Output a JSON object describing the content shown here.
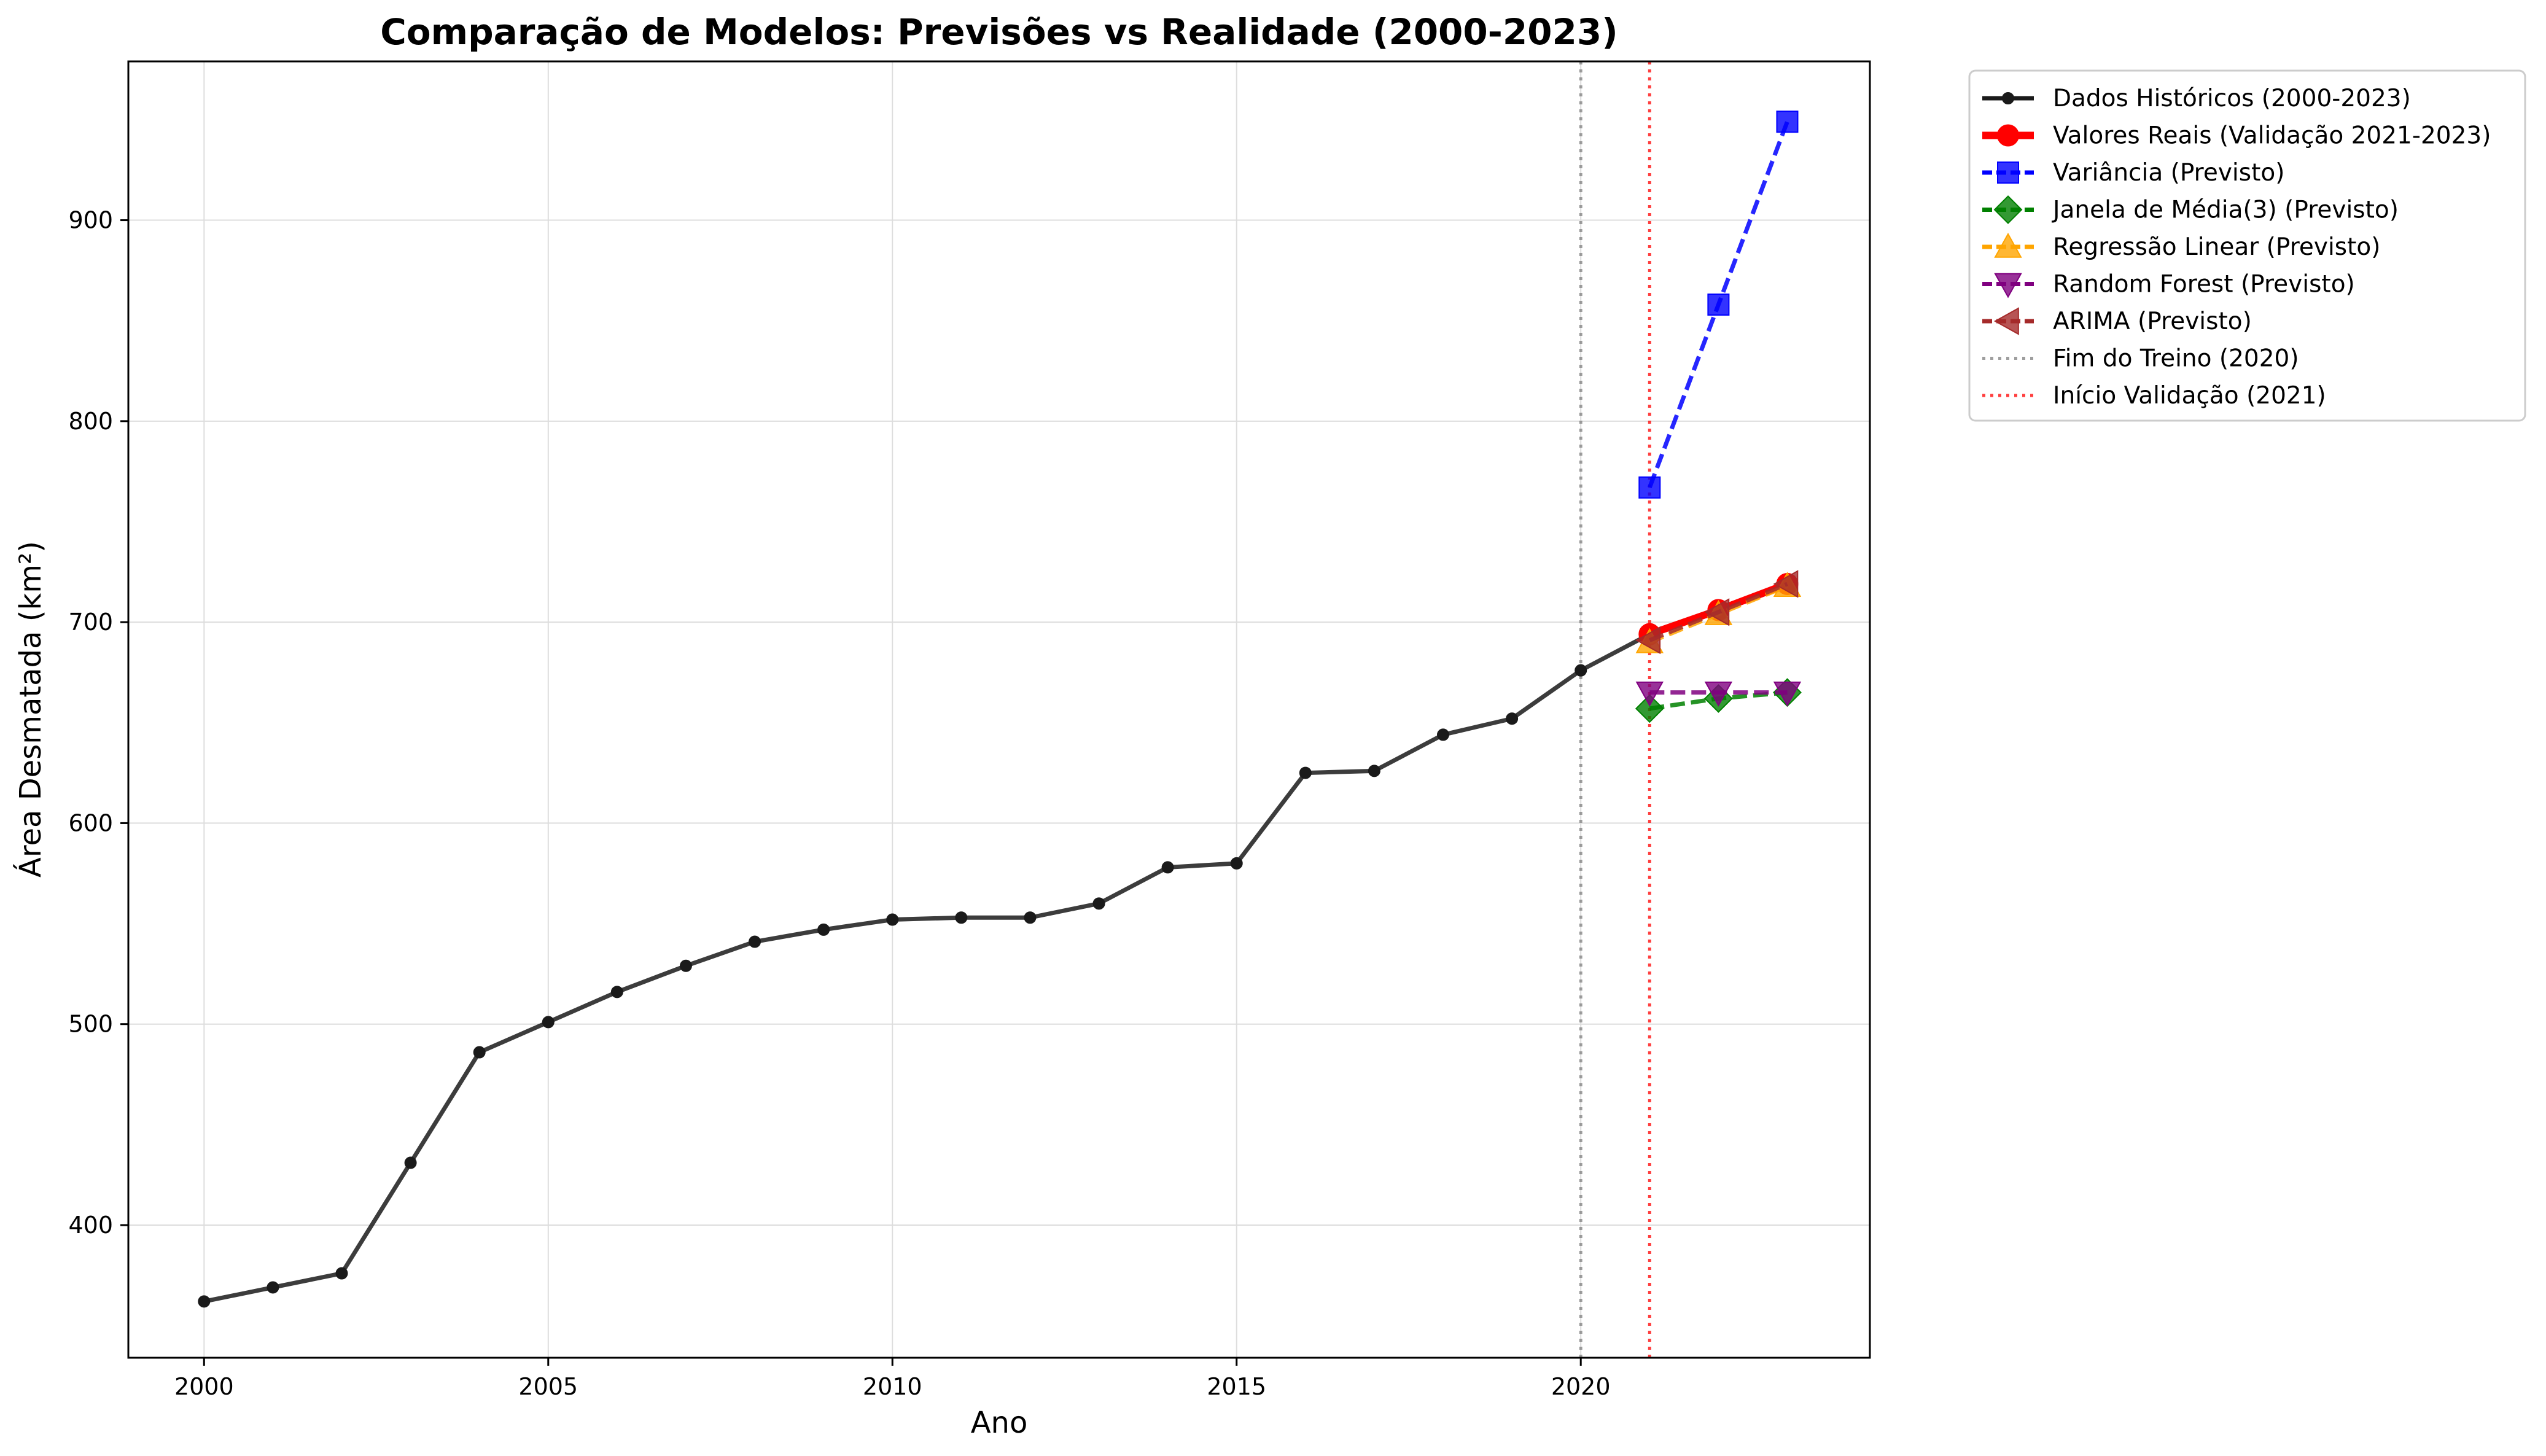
{
  "chart_data": {
    "type": "line",
    "title": "Comparação de Modelos: Previsões vs Realidade (2000-2023)",
    "xlabel": "Ano",
    "ylabel": "Área Desmatada (km²)",
    "xlim": [
      1998.9,
      2024.2
    ],
    "ylim": [
      334,
      979
    ],
    "xticks": [
      2000,
      2005,
      2010,
      2015,
      2020
    ],
    "yticks": [
      400,
      500,
      600,
      700,
      800,
      900
    ],
    "grid": true,
    "legend_position": "outside-right",
    "series": [
      {
        "name": "Dados Históricos (2000-2023)",
        "color": "#1a1a1a",
        "marker": "circle",
        "dash": "solid",
        "width": "medium",
        "x": [
          2000,
          2001,
          2002,
          2003,
          2004,
          2005,
          2006,
          2007,
          2008,
          2009,
          2010,
          2011,
          2012,
          2013,
          2014,
          2015,
          2016,
          2017,
          2018,
          2019,
          2020,
          2021,
          2022,
          2023
        ],
        "y": [
          362,
          369,
          376,
          431,
          486,
          501,
          516,
          529,
          541,
          547,
          552,
          553,
          553,
          560,
          578,
          580,
          625,
          626,
          644,
          652,
          676,
          694,
          706,
          719
        ]
      },
      {
        "name": "Valores Reais (Validação 2021-2023)",
        "color": "#ff0000",
        "marker": "circle-large",
        "dash": "solid",
        "width": "thick",
        "x": [
          2021,
          2022,
          2023
        ],
        "y": [
          694,
          706,
          719
        ]
      },
      {
        "name": "Variância (Previsto)",
        "color": "#0000ff",
        "marker": "square",
        "dash": "dashed",
        "width": "medium",
        "x": [
          2021,
          2022,
          2023
        ],
        "y": [
          767,
          858,
          949
        ]
      },
      {
        "name": "Janela de Média(3) (Previsto)",
        "color": "#008000",
        "marker": "diamond",
        "dash": "dashed",
        "width": "medium",
        "x": [
          2021,
          2022,
          2023
        ],
        "y": [
          657,
          662,
          665
        ]
      },
      {
        "name": "Regressão Linear (Previsto)",
        "color": "#ffa500",
        "marker": "triangle-up",
        "dash": "dashed",
        "width": "medium",
        "x": [
          2021,
          2022,
          2023
        ],
        "y": [
          690,
          704,
          718
        ]
      },
      {
        "name": "Random Forest (Previsto)",
        "color": "#800080",
        "marker": "triangle-down",
        "dash": "dashed",
        "width": "medium",
        "x": [
          2021,
          2022,
          2023
        ],
        "y": [
          665,
          665,
          665
        ]
      },
      {
        "name": "ARIMA (Previsto)",
        "color": "#a52a2a",
        "marker": "triangle-left",
        "dash": "dashed",
        "width": "medium",
        "x": [
          2021,
          2022,
          2023
        ],
        "y": [
          691,
          705,
          719
        ]
      }
    ],
    "vlines": [
      {
        "name": "Fim do Treino (2020)",
        "x": 2020,
        "color": "#808080"
      },
      {
        "name": "Início Validação (2021)",
        "x": 2021,
        "color": "#ff0000"
      }
    ]
  }
}
